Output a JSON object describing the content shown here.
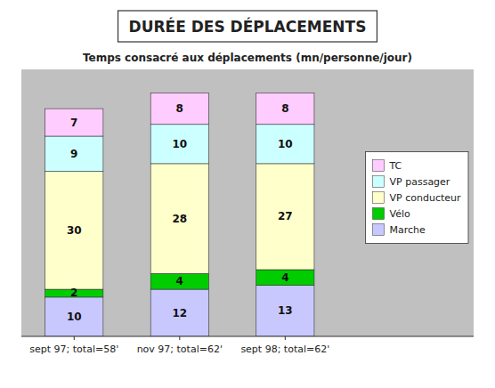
{
  "chart_data": {
    "type": "bar",
    "stacked": true,
    "title": "DURÉE DES DÉPLACEMENTS",
    "subtitle": "Temps consacré aux déplacements (mn/personne/jour)",
    "categories": [
      "sept 97; total=58'",
      "nov 97; total=62'",
      "sept 98; total=62'"
    ],
    "series": [
      {
        "name": "Marche",
        "color": "#c8c8ff",
        "values": [
          10,
          12,
          13
        ]
      },
      {
        "name": "Vélo",
        "color": "#00cc00",
        "values": [
          2,
          4,
          4
        ]
      },
      {
        "name": "VP conducteur",
        "color": "#ffffcc",
        "values": [
          30,
          28,
          27
        ]
      },
      {
        "name": "VP passager",
        "color": "#ccffff",
        "values": [
          9,
          10,
          10
        ]
      },
      {
        "name": "TC",
        "color": "#ffccff",
        "values": [
          7,
          8,
          8
        ]
      }
    ],
    "ylim": [
      0,
      68
    ],
    "tick_labels": "x",
    "data_labels": true,
    "legend": "right",
    "grid": false
  }
}
